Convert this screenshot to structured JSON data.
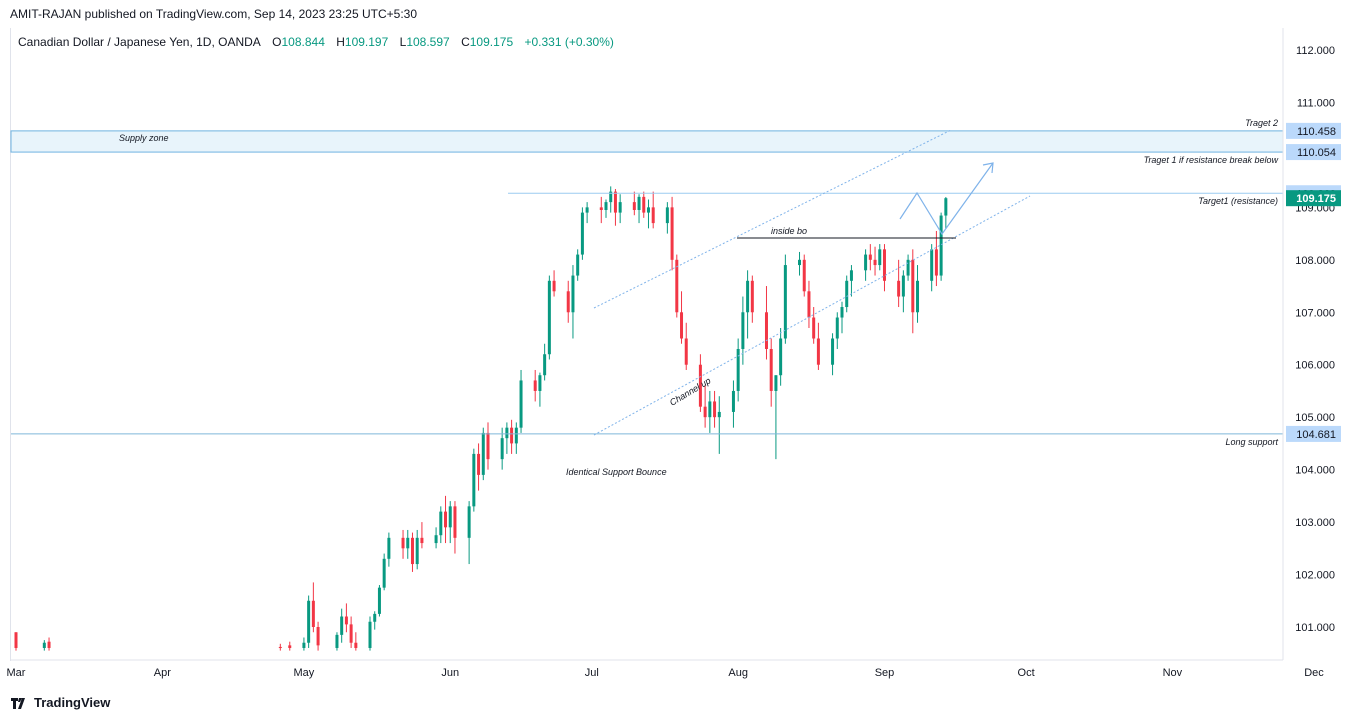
{
  "publisher": "AMIT-RAJAN published on TradingView.com, Sep 14, 2023 23:25 UTC+5:30",
  "header": {
    "symbol": "Canadian Dollar / Japanese Yen, 1D, OANDA",
    "o_label": "O",
    "o_value": "108.844",
    "h_label": "H",
    "h_value": "109.197",
    "l_label": "L",
    "l_value": "108.597",
    "c_label": "C",
    "c_value": "109.175",
    "change": "+0.331 (+0.30%)"
  },
  "footer": {
    "logo_text": "TradingView"
  },
  "colors": {
    "up": "#089981",
    "down": "#f23645",
    "annotation": "#2962ff",
    "price_tag": "#bbd9fb",
    "current_tag": "#089981"
  },
  "chart_data": {
    "type": "candlestick",
    "title": "Canadian Dollar / Japanese Yen, 1D, OANDA",
    "y_axis": {
      "ticks": [
        "112.000",
        "111.000",
        "110.000",
        "109.000",
        "108.000",
        "107.000",
        "106.000",
        "105.000",
        "104.000",
        "103.000",
        "102.000",
        "101.000"
      ],
      "range": [
        100.55,
        112.4
      ]
    },
    "x_axis": {
      "ticks": [
        "Mar",
        "Apr",
        "May",
        "Jun",
        "Jul",
        "Aug",
        "Sep",
        "Oct",
        "Nov",
        "Dec"
      ],
      "range": [
        "2023-03-01",
        "2023-12-20"
      ]
    },
    "price_tags": [
      {
        "label": "Traget 2",
        "value": "110.458",
        "price": 110.458
      },
      {
        "label": "Traget 1 if resistance break below",
        "value": "110.054",
        "price": 110.054
      },
      {
        "label": "",
        "value": "109.269",
        "price": 109.269
      },
      {
        "label": "Target1 (resistance)",
        "value": "109.175",
        "price": 109.175,
        "current": true
      },
      {
        "label": "Long support",
        "value": "104.681",
        "price": 104.681
      }
    ],
    "annotations": {
      "supply_zone": "Supply zone",
      "inside_bo": "inside bo",
      "channel_up": "Channel up",
      "identical_support": "Identical Support Bounce"
    },
    "candles": [
      {
        "d": "2023-03-01",
        "o": 100.9,
        "h": 100.9,
        "l": 100.55,
        "c": 100.6
      },
      {
        "d": "2023-03-07",
        "o": 100.6,
        "h": 100.75,
        "l": 100.55,
        "c": 100.7
      },
      {
        "d": "2023-03-08",
        "o": 100.72,
        "h": 100.8,
        "l": 100.55,
        "c": 100.6
      },
      {
        "d": "2023-04-26",
        "o": 100.62,
        "h": 100.68,
        "l": 100.55,
        "c": 100.6
      },
      {
        "d": "2023-04-28",
        "o": 100.65,
        "h": 100.72,
        "l": 100.55,
        "c": 100.6
      },
      {
        "d": "2023-05-01",
        "o": 100.6,
        "h": 100.8,
        "l": 100.55,
        "c": 100.7
      },
      {
        "d": "2023-05-02",
        "o": 100.7,
        "h": 101.6,
        "l": 100.6,
        "c": 101.5
      },
      {
        "d": "2023-05-03",
        "o": 101.5,
        "h": 101.85,
        "l": 100.9,
        "c": 101.0
      },
      {
        "d": "2023-05-04",
        "o": 101.0,
        "h": 101.1,
        "l": 100.55,
        "c": 100.65
      },
      {
        "d": "2023-05-08",
        "o": 100.6,
        "h": 100.9,
        "l": 100.55,
        "c": 100.85
      },
      {
        "d": "2023-05-09",
        "o": 100.85,
        "h": 101.35,
        "l": 100.7,
        "c": 101.2
      },
      {
        "d": "2023-05-10",
        "o": 101.2,
        "h": 101.45,
        "l": 100.9,
        "c": 101.05
      },
      {
        "d": "2023-05-11",
        "o": 101.05,
        "h": 101.2,
        "l": 100.6,
        "c": 100.7
      },
      {
        "d": "2023-05-12",
        "o": 100.7,
        "h": 100.9,
        "l": 100.55,
        "c": 100.6
      },
      {
        "d": "2023-05-15",
        "o": 100.6,
        "h": 101.2,
        "l": 100.55,
        "c": 101.1
      },
      {
        "d": "2023-05-16",
        "o": 101.1,
        "h": 101.3,
        "l": 100.95,
        "c": 101.25
      },
      {
        "d": "2023-05-17",
        "o": 101.25,
        "h": 101.8,
        "l": 101.2,
        "c": 101.75
      },
      {
        "d": "2023-05-18",
        "o": 101.75,
        "h": 102.4,
        "l": 101.7,
        "c": 102.3
      },
      {
        "d": "2023-05-19",
        "o": 102.3,
        "h": 102.8,
        "l": 102.15,
        "c": 102.7
      },
      {
        "d": "2023-05-22",
        "o": 102.7,
        "h": 102.85,
        "l": 102.3,
        "c": 102.5
      },
      {
        "d": "2023-05-23",
        "o": 102.5,
        "h": 102.85,
        "l": 102.3,
        "c": 102.7
      },
      {
        "d": "2023-05-24",
        "o": 102.7,
        "h": 102.8,
        "l": 102.05,
        "c": 102.2
      },
      {
        "d": "2023-05-25",
        "o": 102.2,
        "h": 102.85,
        "l": 102.1,
        "c": 102.7
      },
      {
        "d": "2023-05-26",
        "o": 102.7,
        "h": 103.0,
        "l": 102.5,
        "c": 102.6
      },
      {
        "d": "2023-05-29",
        "o": 102.6,
        "h": 102.9,
        "l": 102.5,
        "c": 102.75
      },
      {
        "d": "2023-05-30",
        "o": 102.75,
        "h": 103.3,
        "l": 102.6,
        "c": 103.2
      },
      {
        "d": "2023-05-31",
        "o": 103.2,
        "h": 103.5,
        "l": 102.6,
        "c": 102.9
      },
      {
        "d": "2023-06-01",
        "o": 102.9,
        "h": 103.4,
        "l": 102.6,
        "c": 103.3
      },
      {
        "d": "2023-06-02",
        "o": 103.3,
        "h": 103.4,
        "l": 102.4,
        "c": 102.7
      },
      {
        "d": "2023-06-05",
        "o": 102.7,
        "h": 103.4,
        "l": 102.2,
        "c": 103.3
      },
      {
        "d": "2023-06-06",
        "o": 103.3,
        "h": 104.4,
        "l": 103.2,
        "c": 104.3
      },
      {
        "d": "2023-06-07",
        "o": 104.3,
        "h": 104.5,
        "l": 103.6,
        "c": 103.9
      },
      {
        "d": "2023-06-08",
        "o": 103.9,
        "h": 104.8,
        "l": 103.8,
        "c": 104.7
      },
      {
        "d": "2023-06-09",
        "o": 104.7,
        "h": 104.9,
        "l": 104.0,
        "c": 104.2
      },
      {
        "d": "2023-06-12",
        "o": 104.2,
        "h": 104.8,
        "l": 104.0,
        "c": 104.6
      },
      {
        "d": "2023-06-13",
        "o": 104.6,
        "h": 104.9,
        "l": 104.3,
        "c": 104.8
      },
      {
        "d": "2023-06-14",
        "o": 104.8,
        "h": 104.95,
        "l": 104.3,
        "c": 104.5
      },
      {
        "d": "2023-06-15",
        "o": 104.5,
        "h": 104.9,
        "l": 104.3,
        "c": 104.8
      },
      {
        "d": "2023-06-16",
        "o": 104.8,
        "h": 105.9,
        "l": 104.7,
        "c": 105.7
      },
      {
        "d": "2023-06-19",
        "o": 105.7,
        "h": 105.9,
        "l": 105.3,
        "c": 105.5
      },
      {
        "d": "2023-06-20",
        "o": 105.5,
        "h": 105.85,
        "l": 105.2,
        "c": 105.8
      },
      {
        "d": "2023-06-21",
        "o": 105.8,
        "h": 106.4,
        "l": 105.7,
        "c": 106.2
      },
      {
        "d": "2023-06-22",
        "o": 106.2,
        "h": 107.7,
        "l": 106.1,
        "c": 107.6
      },
      {
        "d": "2023-06-23",
        "o": 107.6,
        "h": 107.8,
        "l": 107.3,
        "c": 107.4
      },
      {
        "d": "2023-06-26",
        "o": 107.4,
        "h": 107.6,
        "l": 106.8,
        "c": 107.0
      },
      {
        "d": "2023-06-27",
        "o": 107.0,
        "h": 107.9,
        "l": 106.5,
        "c": 107.7
      },
      {
        "d": "2023-06-28",
        "o": 107.7,
        "h": 108.2,
        "l": 107.6,
        "c": 108.1
      },
      {
        "d": "2023-06-29",
        "o": 108.1,
        "h": 109.0,
        "l": 108.0,
        "c": 108.9
      },
      {
        "d": "2023-06-30",
        "o": 108.9,
        "h": 109.1,
        "l": 108.7,
        "c": 109.0
      },
      {
        "d": "2023-07-03",
        "o": 109.0,
        "h": 109.2,
        "l": 108.7,
        "c": 108.95
      },
      {
        "d": "2023-07-04",
        "o": 108.95,
        "h": 109.15,
        "l": 108.8,
        "c": 109.1
      },
      {
        "d": "2023-07-05",
        "o": 109.1,
        "h": 109.4,
        "l": 108.9,
        "c": 109.3
      },
      {
        "d": "2023-07-06",
        "o": 109.3,
        "h": 109.35,
        "l": 108.65,
        "c": 108.9
      },
      {
        "d": "2023-07-07",
        "o": 108.9,
        "h": 109.25,
        "l": 108.7,
        "c": 109.1
      },
      {
        "d": "2023-07-10",
        "o": 109.1,
        "h": 109.3,
        "l": 108.85,
        "c": 108.95
      },
      {
        "d": "2023-07-11",
        "o": 108.95,
        "h": 109.25,
        "l": 108.7,
        "c": 109.2
      },
      {
        "d": "2023-07-12",
        "o": 109.2,
        "h": 109.3,
        "l": 108.8,
        "c": 108.9
      },
      {
        "d": "2023-07-13",
        "o": 108.9,
        "h": 109.15,
        "l": 108.6,
        "c": 109.0
      },
      {
        "d": "2023-07-14",
        "o": 109.0,
        "h": 109.3,
        "l": 108.6,
        "c": 108.7
      },
      {
        "d": "2023-07-17",
        "o": 108.7,
        "h": 109.1,
        "l": 108.5,
        "c": 109.0
      },
      {
        "d": "2023-07-18",
        "o": 109.0,
        "h": 109.2,
        "l": 107.8,
        "c": 108.0
      },
      {
        "d": "2023-07-19",
        "o": 108.0,
        "h": 108.1,
        "l": 106.9,
        "c": 107.0
      },
      {
        "d": "2023-07-20",
        "o": 107.0,
        "h": 107.4,
        "l": 106.4,
        "c": 106.5
      },
      {
        "d": "2023-07-21",
        "o": 106.5,
        "h": 106.8,
        "l": 105.9,
        "c": 106.0
      },
      {
        "d": "2023-07-24",
        "o": 106.0,
        "h": 106.2,
        "l": 105.1,
        "c": 105.2
      },
      {
        "d": "2023-07-25",
        "o": 105.2,
        "h": 105.6,
        "l": 104.8,
        "c": 105.0
      },
      {
        "d": "2023-07-26",
        "o": 105.0,
        "h": 105.5,
        "l": 104.7,
        "c": 105.3
      },
      {
        "d": "2023-07-27",
        "o": 105.3,
        "h": 105.5,
        "l": 104.8,
        "c": 105.0
      },
      {
        "d": "2023-07-28",
        "o": 105.0,
        "h": 105.4,
        "l": 104.3,
        "c": 105.1
      },
      {
        "d": "2023-07-31",
        "o": 105.1,
        "h": 105.7,
        "l": 104.8,
        "c": 105.5
      },
      {
        "d": "2023-08-01",
        "o": 105.5,
        "h": 106.5,
        "l": 105.3,
        "c": 106.3
      },
      {
        "d": "2023-08-02",
        "o": 106.3,
        "h": 107.3,
        "l": 106.0,
        "c": 107.0
      },
      {
        "d": "2023-08-03",
        "o": 107.0,
        "h": 107.8,
        "l": 106.5,
        "c": 107.6
      },
      {
        "d": "2023-08-04",
        "o": 107.6,
        "h": 107.7,
        "l": 106.8,
        "c": 107.0
      },
      {
        "d": "2023-08-07",
        "o": 107.0,
        "h": 107.5,
        "l": 106.1,
        "c": 106.3
      },
      {
        "d": "2023-08-08",
        "o": 106.3,
        "h": 106.5,
        "l": 105.2,
        "c": 105.5
      },
      {
        "d": "2023-08-09",
        "o": 105.5,
        "h": 105.8,
        "l": 104.2,
        "c": 105.8
      },
      {
        "d": "2023-08-10",
        "o": 105.8,
        "h": 106.7,
        "l": 105.6,
        "c": 106.5
      },
      {
        "d": "2023-08-11",
        "o": 106.5,
        "h": 108.1,
        "l": 106.4,
        "c": 107.9
      },
      {
        "d": "2023-08-14",
        "o": 107.9,
        "h": 108.15,
        "l": 107.7,
        "c": 108.0
      },
      {
        "d": "2023-08-15",
        "o": 108.0,
        "h": 108.1,
        "l": 107.3,
        "c": 107.4
      },
      {
        "d": "2023-08-16",
        "o": 107.4,
        "h": 107.6,
        "l": 106.7,
        "c": 106.9
      },
      {
        "d": "2023-08-17",
        "o": 106.9,
        "h": 107.1,
        "l": 106.4,
        "c": 106.5
      },
      {
        "d": "2023-08-18",
        "o": 106.5,
        "h": 106.8,
        "l": 105.9,
        "c": 106.0
      },
      {
        "d": "2023-08-21",
        "o": 106.0,
        "h": 106.6,
        "l": 105.8,
        "c": 106.5
      },
      {
        "d": "2023-08-22",
        "o": 106.5,
        "h": 107.0,
        "l": 106.3,
        "c": 106.9
      },
      {
        "d": "2023-08-23",
        "o": 106.9,
        "h": 107.2,
        "l": 106.6,
        "c": 107.1
      },
      {
        "d": "2023-08-24",
        "o": 107.1,
        "h": 107.7,
        "l": 107.0,
        "c": 107.6
      },
      {
        "d": "2023-08-25",
        "o": 107.6,
        "h": 107.9,
        "l": 107.3,
        "c": 107.8
      },
      {
        "d": "2023-08-28",
        "o": 107.8,
        "h": 108.2,
        "l": 107.6,
        "c": 108.1
      },
      {
        "d": "2023-08-29",
        "o": 108.1,
        "h": 108.3,
        "l": 107.8,
        "c": 108.0
      },
      {
        "d": "2023-08-30",
        "o": 108.0,
        "h": 108.25,
        "l": 107.7,
        "c": 107.9
      },
      {
        "d": "2023-08-31",
        "o": 107.9,
        "h": 108.3,
        "l": 107.8,
        "c": 108.2
      },
      {
        "d": "2023-09-01",
        "o": 108.2,
        "h": 108.3,
        "l": 107.4,
        "c": 107.6
      },
      {
        "d": "2023-09-04",
        "o": 107.6,
        "h": 108.0,
        "l": 107.1,
        "c": 107.3
      },
      {
        "d": "2023-09-05",
        "o": 107.3,
        "h": 107.8,
        "l": 107.0,
        "c": 107.7
      },
      {
        "d": "2023-09-06",
        "o": 107.7,
        "h": 108.1,
        "l": 107.6,
        "c": 108.0
      },
      {
        "d": "2023-09-07",
        "o": 108.0,
        "h": 108.2,
        "l": 106.6,
        "c": 107.0
      },
      {
        "d": "2023-09-08",
        "o": 107.0,
        "h": 107.9,
        "l": 106.8,
        "c": 107.6
      },
      {
        "d": "2023-09-11",
        "o": 107.6,
        "h": 108.3,
        "l": 107.4,
        "c": 108.2
      },
      {
        "d": "2023-09-12",
        "o": 108.2,
        "h": 108.55,
        "l": 107.5,
        "c": 107.7
      },
      {
        "d": "2023-09-13",
        "o": 107.7,
        "h": 108.9,
        "l": 107.6,
        "c": 108.844
      },
      {
        "d": "2023-09-14",
        "o": 108.844,
        "h": 109.197,
        "l": 108.597,
        "c": 109.175
      }
    ]
  }
}
